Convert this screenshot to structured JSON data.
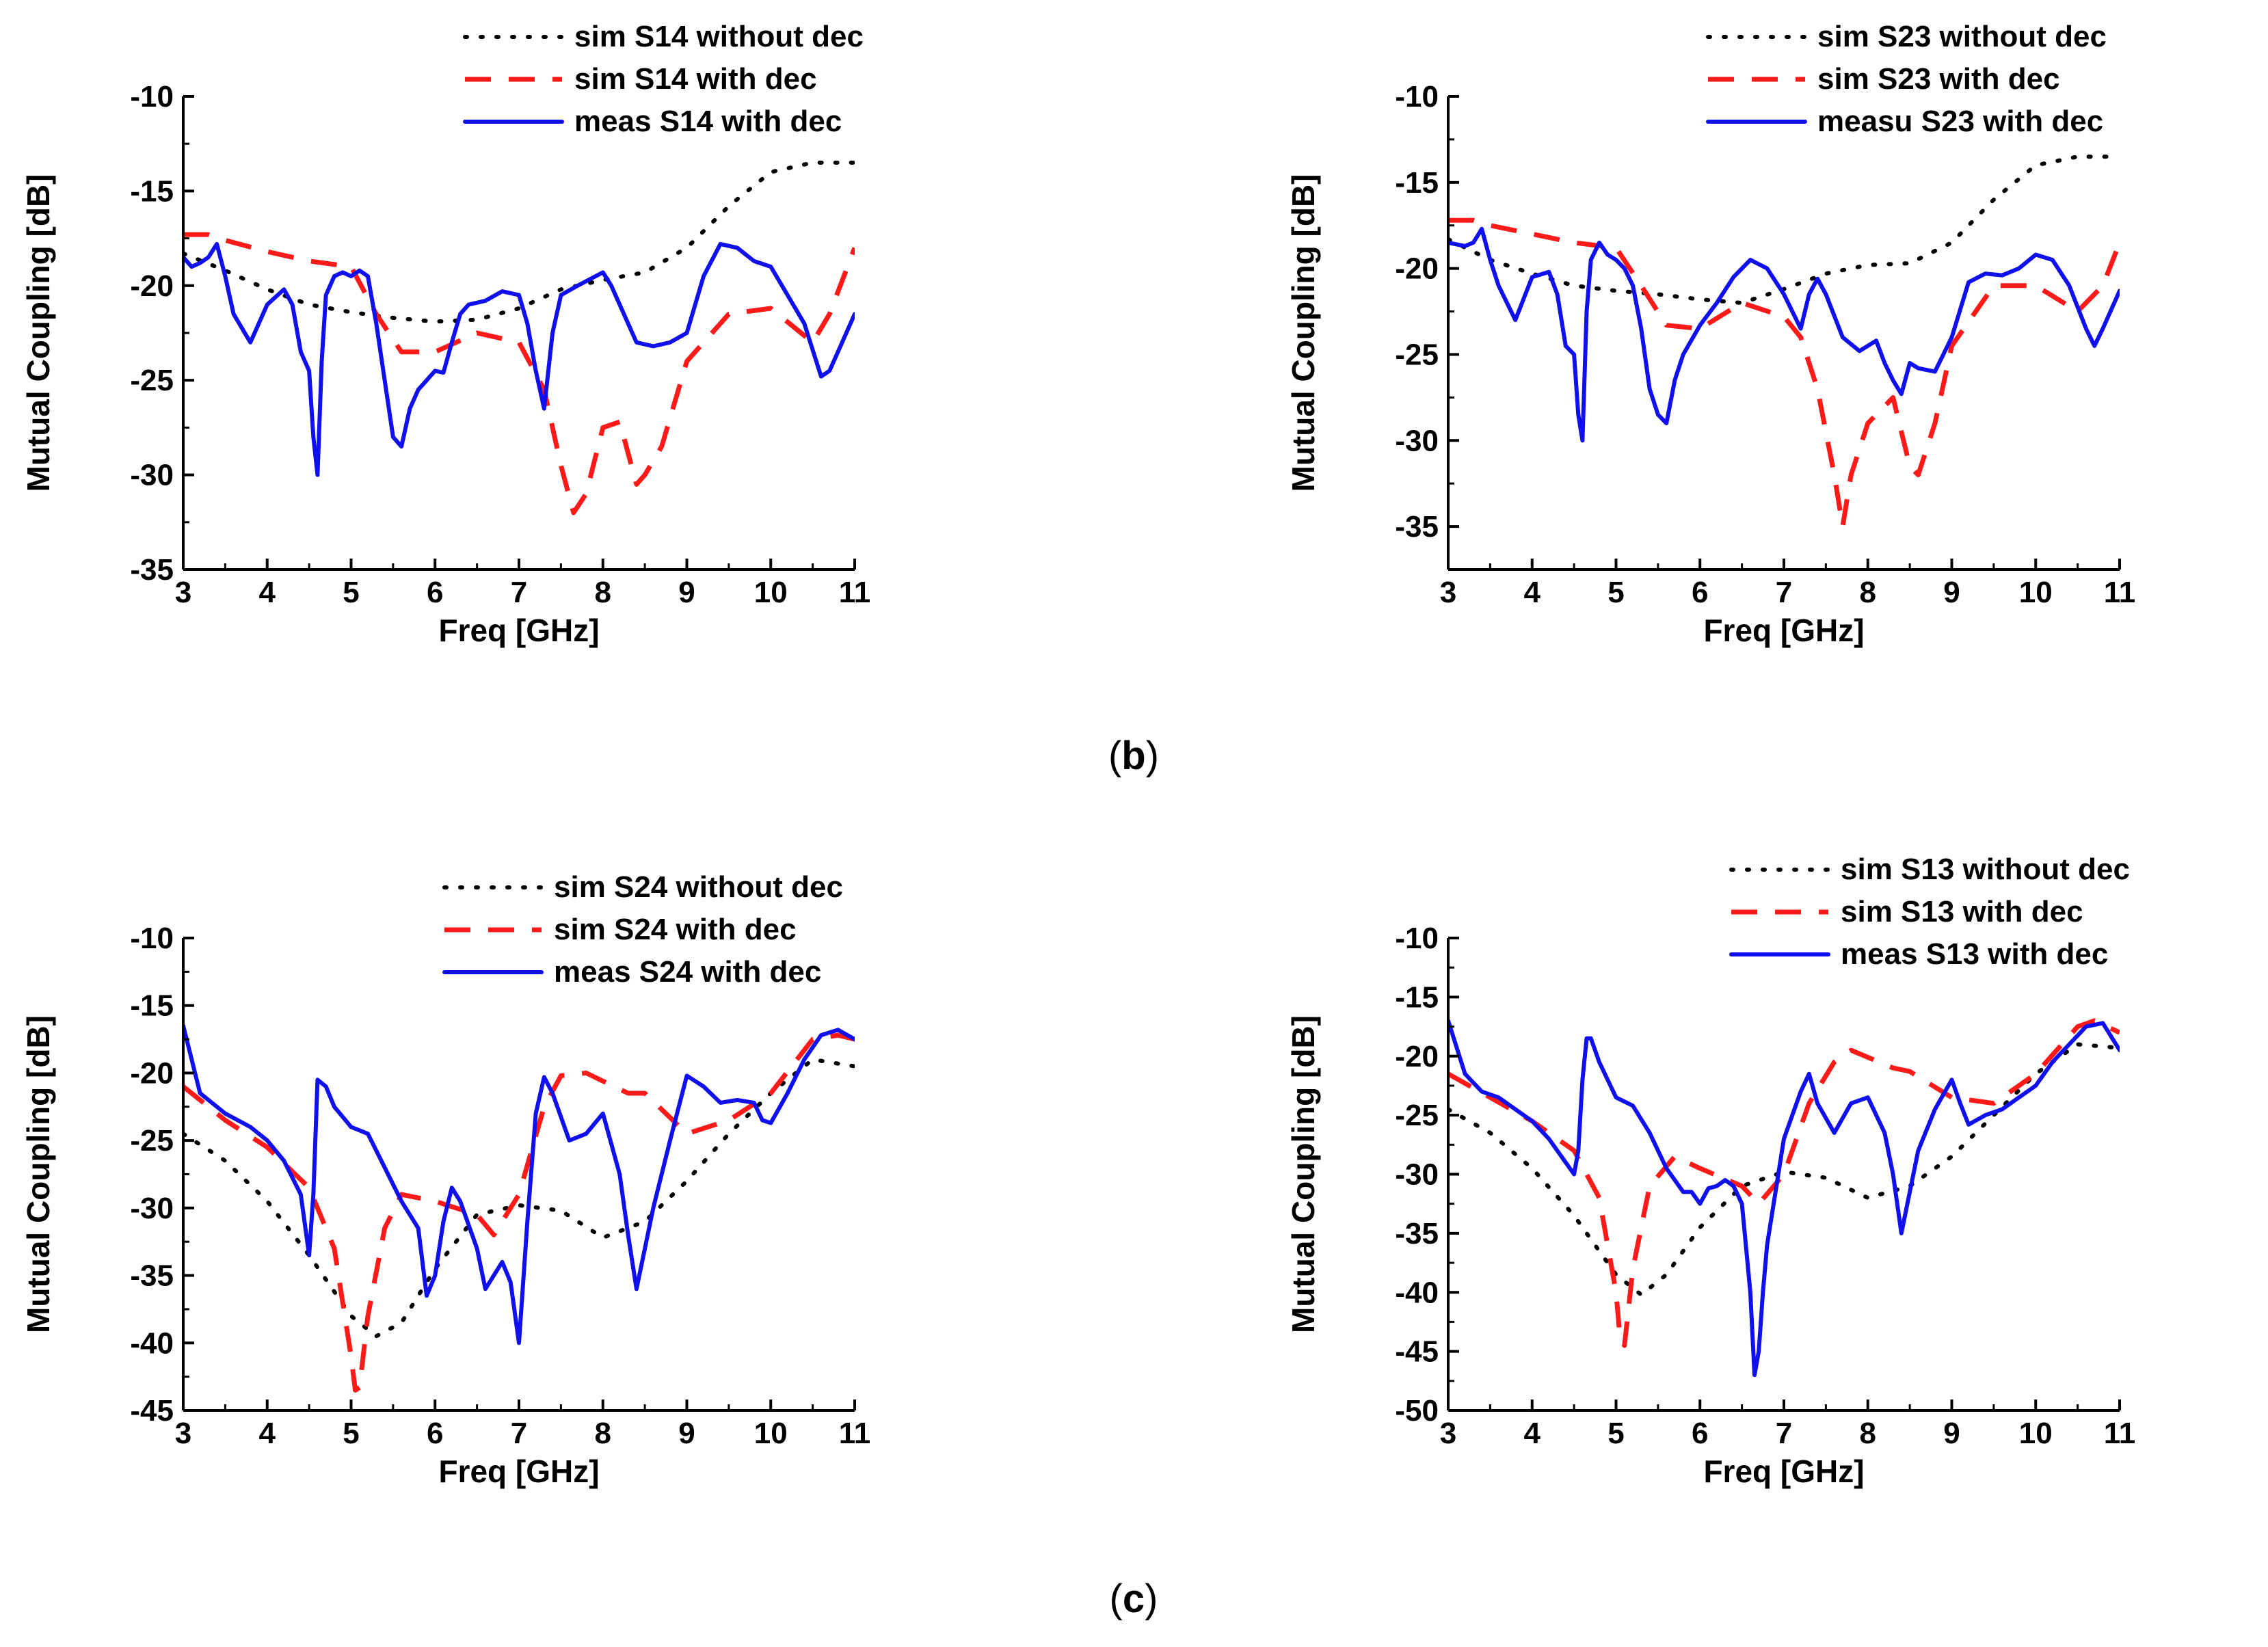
{
  "colors": {
    "sim_without": "#000000",
    "sim_with": "#ff1a1a",
    "meas_with": "#1010ee",
    "axis": "#000000"
  },
  "captions": {
    "b": "(b)",
    "c": "(c)"
  },
  "caption_parts": {
    "b": {
      "open": "(",
      "letter": "b",
      "close": ")"
    },
    "c": {
      "open": "(",
      "letter": "c",
      "close": ")"
    }
  },
  "chart_data": [
    {
      "id": "s14",
      "type": "line",
      "xlabel": "Freq [GHz]",
      "ylabel": "Mutual Coupling [dB]",
      "xlim": [
        3,
        11
      ],
      "ylim": [
        -35,
        -10
      ],
      "xticks": [
        "3",
        "4",
        "5",
        "6",
        "7",
        "8",
        "9",
        "10",
        "11"
      ],
      "yticks": [
        "-10",
        "-15",
        "-20",
        "-25",
        "-30",
        "-35"
      ],
      "series": [
        {
          "name": "sim S14 without dec",
          "style": "dotted",
          "x": [
            3,
            3.5,
            4,
            4.5,
            5,
            5.5,
            6,
            6.5,
            7,
            7.5,
            8,
            8.5,
            9,
            9.5,
            10,
            10.5,
            11
          ],
          "y": [
            -18.3,
            -19.2,
            -20.2,
            -21,
            -21.4,
            -21.7,
            -21.9,
            -21.8,
            -21.2,
            -20.2,
            -19.7,
            -19.3,
            -18,
            -15.8,
            -14,
            -13.5,
            -13.5
          ]
        },
        {
          "name": "sim S14 with dec",
          "style": "dashed",
          "x": [
            3,
            3.3,
            3.5,
            4,
            4.5,
            5,
            5.3,
            5.6,
            6,
            6.5,
            7,
            7.3,
            7.5,
            7.65,
            7.8,
            8,
            8.2,
            8.4,
            8.5,
            8.7,
            9,
            9.5,
            10,
            10.5,
            10.7,
            11
          ],
          "y": [
            -17.3,
            -17.3,
            -17.6,
            -18.2,
            -18.7,
            -19,
            -21.5,
            -23.5,
            -23.5,
            -22.5,
            -23,
            -25.5,
            -29.5,
            -32,
            -31,
            -27.5,
            -27.2,
            -30.5,
            -30,
            -28.5,
            -24,
            -21.5,
            -21.2,
            -23,
            -21.5,
            -18
          ]
        },
        {
          "name": "meas S14 with dec",
          "style": "solid",
          "x": [
            3,
            3.1,
            3.2,
            3.3,
            3.4,
            3.5,
            3.6,
            3.8,
            4,
            4.2,
            4.3,
            4.4,
            4.5,
            4.55,
            4.6,
            4.65,
            4.7,
            4.8,
            4.9,
            5,
            5.1,
            5.2,
            5.3,
            5.4,
            5.5,
            5.6,
            5.7,
            5.8,
            6,
            6.1,
            6.2,
            6.3,
            6.4,
            6.6,
            6.8,
            7,
            7.1,
            7.2,
            7.3,
            7.4,
            7.5,
            7.7,
            8,
            8.1,
            8.2,
            8.4,
            8.6,
            8.8,
            9,
            9.2,
            9.4,
            9.6,
            9.8,
            10,
            10.2,
            10.4,
            10.6,
            10.7,
            10.8,
            11
          ],
          "y": [
            -18.5,
            -19,
            -18.8,
            -18.5,
            -17.8,
            -19.5,
            -21.5,
            -23,
            -21,
            -20.2,
            -21,
            -23.5,
            -24.5,
            -28,
            -30,
            -24,
            -20.5,
            -19.5,
            -19.3,
            -19.5,
            -19.2,
            -19.5,
            -22,
            -25,
            -28,
            -28.5,
            -26.5,
            -25.5,
            -24.5,
            -24.6,
            -23,
            -21.5,
            -21,
            -20.8,
            -20.3,
            -20.5,
            -22,
            -24.5,
            -26.5,
            -22.5,
            -20.5,
            -20,
            -19.3,
            -20,
            -21,
            -23,
            -23.2,
            -23,
            -22.5,
            -19.5,
            -17.8,
            -18,
            -18.7,
            -19,
            -20.5,
            -22,
            -24.8,
            -24.5,
            -23.5,
            -21.5
          ]
        }
      ]
    },
    {
      "id": "s23",
      "type": "line",
      "xlabel": "Freq [GHz]",
      "ylabel": "Mutual Coupling [dB]",
      "xlim": [
        3,
        11
      ],
      "ylim": [
        -37.5,
        -10
      ],
      "xticks": [
        "3",
        "4",
        "5",
        "6",
        "7",
        "8",
        "9",
        "10",
        "11"
      ],
      "yticks": [
        "-10",
        "-15",
        "-20",
        "-25",
        "-30",
        "-35"
      ],
      "series": [
        {
          "name": "sim S23 without dec",
          "style": "dotted",
          "x": [
            3,
            3.5,
            4,
            4.5,
            5,
            5.5,
            6,
            6.5,
            7,
            7.5,
            8,
            8.5,
            9,
            9.5,
            10,
            10.5,
            11
          ],
          "y": [
            -18.3,
            -19.5,
            -20.3,
            -21,
            -21.3,
            -21.5,
            -21.8,
            -22,
            -21.2,
            -20.3,
            -19.8,
            -19.7,
            -18.5,
            -16,
            -14,
            -13.5,
            -13.5
          ]
        },
        {
          "name": "sim S23 with dec",
          "style": "dashed",
          "x": [
            3,
            3.3,
            3.5,
            4,
            4.5,
            5,
            5.3,
            5.6,
            6,
            6.5,
            7,
            7.2,
            7.4,
            7.6,
            7.7,
            7.8,
            8,
            8.3,
            8.5,
            8.6,
            8.8,
            9,
            9.5,
            10,
            10.5,
            10.8,
            11
          ],
          "y": [
            -17.2,
            -17.2,
            -17.5,
            -18,
            -18.5,
            -18.8,
            -21,
            -23.3,
            -23.5,
            -22,
            -22.8,
            -24,
            -27,
            -32,
            -35,
            -32,
            -29,
            -27.5,
            -31.5,
            -32,
            -29,
            -24.5,
            -21,
            -21,
            -22.5,
            -21,
            -18.5
          ]
        },
        {
          "name": "measu S23 with dec",
          "style": "solid",
          "x": [
            3,
            3.1,
            3.2,
            3.3,
            3.4,
            3.5,
            3.6,
            3.8,
            4,
            4.2,
            4.3,
            4.4,
            4.5,
            4.55,
            4.6,
            4.65,
            4.7,
            4.8,
            4.9,
            5,
            5.1,
            5.2,
            5.3,
            5.4,
            5.5,
            5.6,
            5.7,
            5.8,
            6,
            6.2,
            6.4,
            6.6,
            6.8,
            7,
            7.1,
            7.2,
            7.3,
            7.4,
            7.5,
            7.7,
            7.9,
            8.1,
            8.2,
            8.3,
            8.4,
            8.5,
            8.6,
            8.8,
            9,
            9.2,
            9.4,
            9.6,
            9.8,
            10,
            10.2,
            10.4,
            10.6,
            10.7,
            10.8,
            11
          ],
          "y": [
            -18.5,
            -18.6,
            -18.7,
            -18.5,
            -17.7,
            -19.5,
            -21,
            -23,
            -20.5,
            -20.2,
            -21.5,
            -24.5,
            -25,
            -28.5,
            -30,
            -22.5,
            -19.5,
            -18.5,
            -19.2,
            -19.5,
            -20,
            -21,
            -23.5,
            -27,
            -28.5,
            -29,
            -26.5,
            -25,
            -23.3,
            -22,
            -20.5,
            -19.5,
            -20,
            -21.5,
            -22.5,
            -23.5,
            -21.5,
            -20.6,
            -21.5,
            -24,
            -24.8,
            -24.2,
            -25.5,
            -26.5,
            -27.3,
            -25.5,
            -25.8,
            -26,
            -24,
            -20.8,
            -20.3,
            -20.4,
            -20,
            -19.2,
            -19.5,
            -21,
            -23.5,
            -24.5,
            -23.5,
            -21.3
          ]
        }
      ]
    },
    {
      "id": "s24",
      "type": "line",
      "xlabel": "Freq [GHz]",
      "ylabel": "Mutual Coupling [dB]",
      "xlim": [
        3,
        11
      ],
      "ylim": [
        -45,
        -10
      ],
      "xticks": [
        "3",
        "4",
        "5",
        "6",
        "7",
        "8",
        "9",
        "10",
        "11"
      ],
      "yticks": [
        "-10",
        "-15",
        "-20",
        "-25",
        "-30",
        "-35",
        "-40",
        "-45"
      ],
      "series": [
        {
          "name": "sim S24 without dec",
          "style": "dotted",
          "x": [
            3,
            3.5,
            4,
            4.5,
            5,
            5.3,
            5.6,
            6,
            6.5,
            7,
            7.5,
            8,
            8.5,
            9,
            9.5,
            10,
            10.5,
            11
          ],
          "y": [
            -24.5,
            -26.5,
            -29.5,
            -33.5,
            -38,
            -39.5,
            -38.5,
            -34.5,
            -30.5,
            -29.8,
            -30.2,
            -32.2,
            -31,
            -28,
            -24.5,
            -21.5,
            -19,
            -19.5
          ]
        },
        {
          "name": "sim S24 with dec",
          "style": "dashed",
          "x": [
            3,
            3.5,
            4,
            4.5,
            4.8,
            5,
            5.05,
            5.1,
            5.2,
            5.4,
            5.6,
            6,
            6.5,
            6.7,
            7,
            7.3,
            7.5,
            7.8,
            8.3,
            8.5,
            9,
            9.5,
            10,
            10.5,
            10.8,
            11
          ],
          "y": [
            -21,
            -23.5,
            -25.5,
            -28.5,
            -33,
            -41,
            -43.5,
            -43.3,
            -38,
            -31.5,
            -29,
            -29.5,
            -30.5,
            -32,
            -29,
            -22.5,
            -20.2,
            -20,
            -21.5,
            -21.5,
            -24.5,
            -23.5,
            -21.5,
            -17.5,
            -17.2,
            -17.5
          ]
        },
        {
          "name": "meas S24 with dec",
          "style": "solid",
          "x": [
            3,
            3.2,
            3.5,
            3.8,
            4,
            4.2,
            4.4,
            4.5,
            4.55,
            4.6,
            4.7,
            4.8,
            5,
            5.2,
            5.4,
            5.6,
            5.8,
            5.9,
            6,
            6.1,
            6.2,
            6.3,
            6.5,
            6.6,
            6.8,
            6.9,
            7,
            7.1,
            7.2,
            7.3,
            7.4,
            7.6,
            7.8,
            8,
            8.2,
            8.3,
            8.4,
            8.6,
            8.8,
            9,
            9.2,
            9.4,
            9.6,
            9.8,
            9.9,
            10,
            10.2,
            10.4,
            10.6,
            10.8,
            11
          ],
          "y": [
            -16.5,
            -21.5,
            -23,
            -24,
            -25,
            -26.5,
            -29,
            -33.5,
            -29,
            -20.5,
            -21,
            -22.5,
            -24,
            -24.5,
            -27,
            -29.5,
            -31.5,
            -36.5,
            -35,
            -31,
            -28.5,
            -29.5,
            -33,
            -36,
            -34,
            -35.5,
            -40,
            -31,
            -23,
            -20.3,
            -21.5,
            -25,
            -24.5,
            -23,
            -27.5,
            -32,
            -36,
            -30,
            -25,
            -20.2,
            -21,
            -22.2,
            -22,
            -22.2,
            -23.5,
            -23.7,
            -21.5,
            -19,
            -17.2,
            -16.8,
            -17.5
          ]
        }
      ]
    },
    {
      "id": "s13",
      "type": "line",
      "xlabel": "Freq [GHz]",
      "ylabel": "Mutual Coupling [dB]",
      "xlim": [
        3,
        11
      ],
      "ylim": [
        -50,
        -10
      ],
      "xticks": [
        "3",
        "4",
        "5",
        "6",
        "7",
        "8",
        "9",
        "10",
        "11"
      ],
      "yticks": [
        "-10",
        "-15",
        "-20",
        "-25",
        "-30",
        "-35",
        "-40",
        "-45",
        "-50"
      ],
      "series": [
        {
          "name": "sim S13 without dec",
          "style": "dotted",
          "x": [
            3,
            3.5,
            4,
            4.5,
            5,
            5.3,
            5.6,
            6,
            6.5,
            7,
            7.5,
            8,
            8.5,
            9,
            9.5,
            10,
            10.5,
            11
          ],
          "y": [
            -24.5,
            -26.5,
            -29.5,
            -33.5,
            -38.5,
            -40.2,
            -38.5,
            -34.5,
            -31,
            -29.8,
            -30.3,
            -32,
            -31,
            -28.5,
            -25,
            -21.5,
            -19,
            -19.3
          ]
        },
        {
          "name": "sim S13 with dec",
          "style": "dashed",
          "x": [
            3,
            3.5,
            4,
            4.5,
            4.8,
            5,
            5.05,
            5.1,
            5.2,
            5.4,
            5.7,
            6,
            6.5,
            6.7,
            7,
            7.3,
            7.6,
            7.8,
            8.3,
            8.5,
            9,
            9.5,
            10,
            10.5,
            10.7,
            11
          ],
          "y": [
            -21.5,
            -23.5,
            -25.5,
            -28,
            -32,
            -40,
            -44,
            -44.5,
            -38,
            -31,
            -28.5,
            -29.5,
            -31,
            -32.5,
            -30,
            -24,
            -20.5,
            -19.5,
            -21,
            -21.3,
            -23.5,
            -24,
            -21.5,
            -17.5,
            -17,
            -18
          ]
        },
        {
          "name": "meas S13 with dec",
          "style": "solid",
          "x": [
            3,
            3.2,
            3.4,
            3.6,
            3.8,
            4,
            4.2,
            4.4,
            4.5,
            4.55,
            4.6,
            4.65,
            4.7,
            4.8,
            5,
            5.2,
            5.4,
            5.6,
            5.8,
            5.9,
            6,
            6.1,
            6.2,
            6.3,
            6.4,
            6.5,
            6.6,
            6.65,
            6.7,
            6.75,
            6.8,
            7,
            7.2,
            7.3,
            7.4,
            7.6,
            7.8,
            8,
            8.2,
            8.3,
            8.4,
            8.5,
            8.6,
            8.8,
            9,
            9.1,
            9.2,
            9.4,
            9.6,
            9.8,
            10,
            10.2,
            10.4,
            10.6,
            10.8,
            11
          ],
          "y": [
            -17,
            -21.5,
            -23,
            -23.5,
            -24.5,
            -25.5,
            -27,
            -29,
            -30,
            -28,
            -22,
            -18.5,
            -18.5,
            -20.5,
            -23.5,
            -24.2,
            -26.5,
            -29.5,
            -31.5,
            -31.5,
            -32.5,
            -31.2,
            -31,
            -30.5,
            -31,
            -32.5,
            -40,
            -47,
            -45,
            -40,
            -36,
            -27,
            -23,
            -21.5,
            -24,
            -26.5,
            -24,
            -23.5,
            -26.5,
            -30,
            -35,
            -31.5,
            -28,
            -24.5,
            -22,
            -24,
            -25.8,
            -25,
            -24.5,
            -23.5,
            -22.5,
            -20.5,
            -19,
            -17.5,
            -17.2,
            -19.5
          ]
        }
      ]
    }
  ]
}
